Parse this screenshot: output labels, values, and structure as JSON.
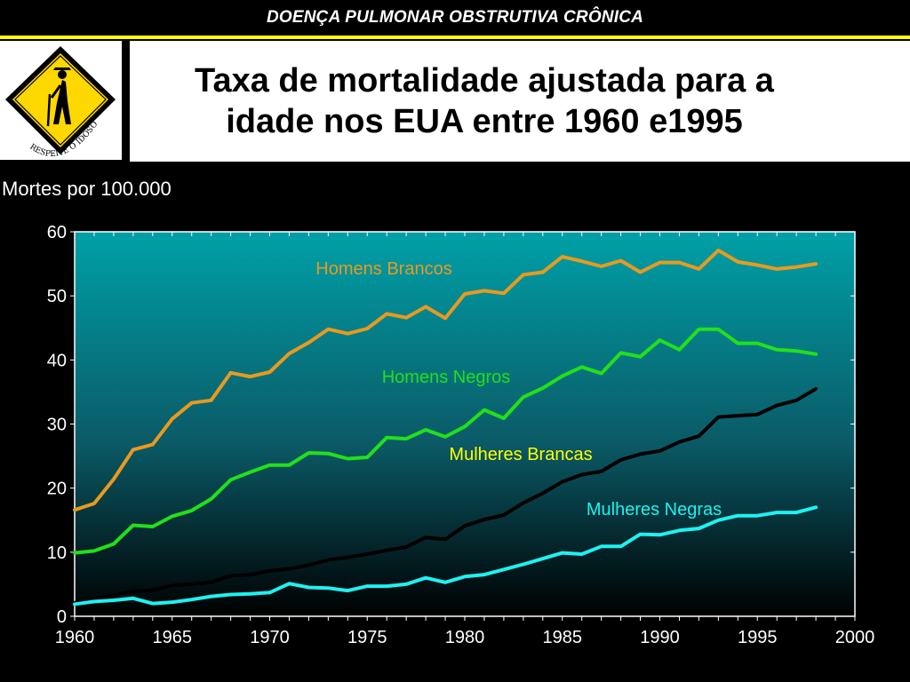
{
  "header": {
    "banner": "DOENÇA PULMONAR OBSTRUTIVA CRÔNICA",
    "title": "Taxa de mortalidade ajustada para a\nidade nos  EUA entre 1960 e1995"
  },
  "logo": {
    "icon": "elderly-crossing-sign-icon",
    "text": "RESPEITE O IDOSO"
  },
  "colors": {
    "accent_bar": "#ffff00",
    "plot_top": "#00a0a8",
    "plot_bottom": "#000000"
  },
  "chart_data": {
    "type": "line",
    "title": "",
    "ylabel": "Mortes por 100.000",
    "xlabel": "",
    "xlim": [
      1960,
      2000
    ],
    "ylim": [
      0,
      60
    ],
    "xticks": [
      1960,
      1965,
      1970,
      1975,
      1980,
      1985,
      1990,
      1995,
      2000
    ],
    "yticks": [
      0,
      10,
      20,
      30,
      40,
      50,
      60
    ],
    "grid": false,
    "x": [
      1960,
      1961,
      1962,
      1963,
      1964,
      1965,
      1966,
      1967,
      1968,
      1969,
      1970,
      1971,
      1972,
      1973,
      1974,
      1975,
      1976,
      1977,
      1978,
      1979,
      1980,
      1981,
      1982,
      1983,
      1984,
      1985,
      1986,
      1987,
      1988,
      1989,
      1990,
      1991,
      1992,
      1993,
      1994,
      1995,
      1996,
      1997,
      1998
    ],
    "series": [
      {
        "name": "Homens Brancos",
        "color": "#e89a1e",
        "label_color": "#e89a1e",
        "values": [
          16.6,
          17.6,
          21.4,
          26.0,
          26.8,
          30.8,
          33.3,
          33.7,
          38.0,
          37.4,
          38.1,
          41.0,
          42.7,
          44.8,
          44.1,
          44.9,
          47.2,
          46.6,
          48.3,
          46.5,
          50.3,
          50.8,
          50.4,
          53.3,
          53.7,
          56.1,
          55.4,
          54.6,
          55.5,
          53.7,
          55.2,
          55.2,
          54.2,
          57.1,
          55.3,
          54.8,
          54.2,
          54.5,
          55.0
        ]
      },
      {
        "name": "Homens Negros",
        "color": "#22e01a",
        "label_color": "#22e01a",
        "values": [
          9.9,
          10.2,
          11.3,
          14.2,
          14.0,
          15.6,
          16.5,
          18.3,
          21.3,
          22.5,
          23.6,
          23.6,
          25.5,
          25.4,
          24.6,
          24.8,
          27.9,
          27.7,
          29.1,
          28.0,
          29.6,
          32.2,
          30.9,
          34.2,
          35.6,
          37.5,
          38.9,
          37.9,
          41.1,
          40.5,
          43.1,
          41.6,
          44.8,
          44.8,
          42.6,
          42.6,
          41.6,
          41.4,
          40.9
        ]
      },
      {
        "name": "Mulheres Brancas",
        "color": "#000000",
        "label_color": "#ffff00",
        "values": [
          2.1,
          2.7,
          3.3,
          3.9,
          4.1,
          4.8,
          5.0,
          5.3,
          6.3,
          6.5,
          7.1,
          7.4,
          8.0,
          8.8,
          9.2,
          9.7,
          10.3,
          10.8,
          12.3,
          12.0,
          14.1,
          15.1,
          15.8,
          17.7,
          19.2,
          21.0,
          22.1,
          22.6,
          24.4,
          25.3,
          25.8,
          27.2,
          28.1,
          31.1,
          31.3,
          31.5,
          32.9,
          33.7,
          35.5
        ]
      },
      {
        "name": "Mulheres Negras",
        "color": "#1ef2f0",
        "label_color": "#1ef2f0",
        "values": [
          1.9,
          2.3,
          2.5,
          2.8,
          2.0,
          2.2,
          2.6,
          3.1,
          3.4,
          3.5,
          3.7,
          5.1,
          4.5,
          4.4,
          4.0,
          4.7,
          4.7,
          5.0,
          6.0,
          5.3,
          6.2,
          6.5,
          7.3,
          8.1,
          9.0,
          9.9,
          9.7,
          10.9,
          10.9,
          12.8,
          12.7,
          13.4,
          13.7,
          15.0,
          15.7,
          15.7,
          16.2,
          16.2,
          17.0
        ]
      }
    ]
  }
}
